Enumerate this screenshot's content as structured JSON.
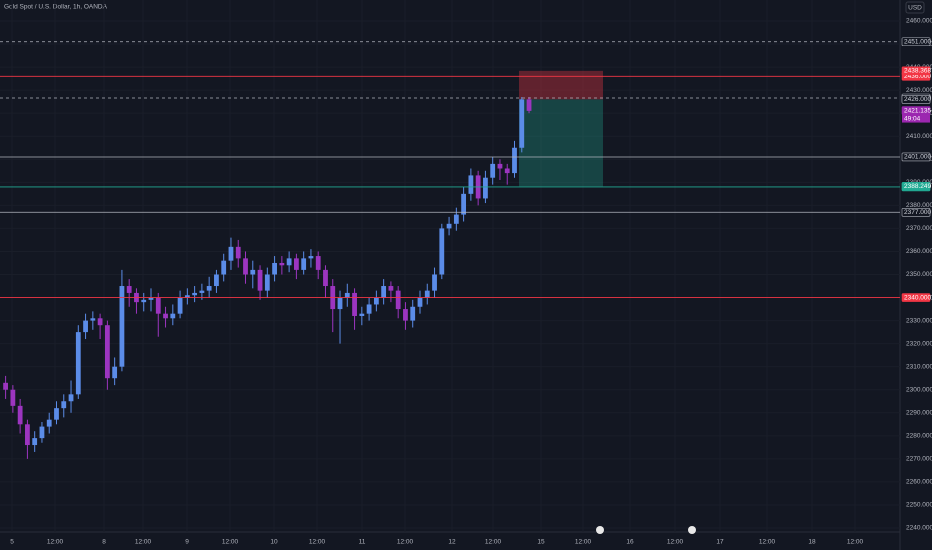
{
  "chart_data": {
    "type": "candlestick",
    "title": "Gold Spot / U.S. Dollar, 1h, OANDA",
    "currency": "USD",
    "up_color": "#5b8ce8",
    "down_color": "#9c35c0",
    "ylim": [
      2240,
      2460
    ],
    "yticks": [
      {
        "value": 2240,
        "label": "2240.000"
      },
      {
        "value": 2250,
        "label": "2250.000"
      },
      {
        "value": 2260,
        "label": "2260.000"
      },
      {
        "value": 2270,
        "label": "2270.000"
      },
      {
        "value": 2280,
        "label": "2280.000"
      },
      {
        "value": 2290,
        "label": "2290.000"
      },
      {
        "value": 2300,
        "label": "2300.000"
      },
      {
        "value": 2310,
        "label": "2310.000"
      },
      {
        "value": 2320,
        "label": "2320.000"
      },
      {
        "value": 2330,
        "label": "2330.000"
      },
      {
        "value": 2340,
        "label": "2340.000"
      },
      {
        "value": 2350,
        "label": "2350.000"
      },
      {
        "value": 2360,
        "label": "2360.000"
      },
      {
        "value": 2370,
        "label": "2370.000"
      },
      {
        "value": 2380,
        "label": "2380.000"
      },
      {
        "value": 2390,
        "label": "2390.000"
      },
      {
        "value": 2400,
        "label": "2400.000"
      },
      {
        "value": 2410,
        "label": "2410.000"
      },
      {
        "value": 2420,
        "label": "2420.000"
      },
      {
        "value": 2430,
        "label": "2430.000"
      },
      {
        "value": 2440,
        "label": "2440.000"
      },
      {
        "value": 2450,
        "label": "2450.000"
      },
      {
        "value": 2460,
        "label": "2460.000"
      }
    ],
    "xticks": [
      "5",
      "12:00",
      "8",
      "12:00",
      "9",
      "12:00",
      "10",
      "12:00",
      "11",
      "12:00",
      "12",
      "12:00",
      "15",
      "12:00",
      "16",
      "12:00",
      "17",
      "12:00",
      "18",
      "12:00"
    ],
    "ohlc": [
      [
        2303,
        2306,
        2296,
        2300
      ],
      [
        2300,
        2302,
        2290,
        2293
      ],
      [
        2293,
        2296,
        2281,
        2285
      ],
      [
        2285,
        2287,
        2270,
        2276
      ],
      [
        2276,
        2282,
        2273,
        2279
      ],
      [
        2279,
        2286,
        2277,
        2284
      ],
      [
        2284,
        2290,
        2281,
        2287
      ],
      [
        2287,
        2295,
        2285,
        2292
      ],
      [
        2292,
        2298,
        2288,
        2295
      ],
      [
        2295,
        2304,
        2290,
        2298
      ],
      [
        2298,
        2328,
        2296,
        2325
      ],
      [
        2325,
        2333,
        2322,
        2330
      ],
      [
        2330,
        2334,
        2326,
        2331
      ],
      [
        2331,
        2333,
        2322,
        2328
      ],
      [
        2328,
        2330,
        2300,
        2305
      ],
      [
        2305,
        2314,
        2302,
        2310
      ],
      [
        2310,
        2352,
        2308,
        2345
      ],
      [
        2345,
        2348,
        2336,
        2342
      ],
      [
        2342,
        2344,
        2333,
        2338
      ],
      [
        2338,
        2342,
        2334,
        2339
      ],
      [
        2339,
        2344,
        2334,
        2340
      ],
      [
        2340,
        2342,
        2323,
        2333
      ],
      [
        2333,
        2336,
        2327,
        2331
      ],
      [
        2331,
        2337,
        2328,
        2333
      ],
      [
        2333,
        2343,
        2331,
        2340
      ],
      [
        2340,
        2344,
        2337,
        2341
      ],
      [
        2341,
        2345,
        2338,
        2342
      ],
      [
        2342,
        2346,
        2339,
        2343
      ],
      [
        2343,
        2349,
        2340,
        2345
      ],
      [
        2345,
        2352,
        2342,
        2350
      ],
      [
        2350,
        2359,
        2347,
        2356
      ],
      [
        2356,
        2366,
        2352,
        2362
      ],
      [
        2362,
        2365,
        2353,
        2357
      ],
      [
        2357,
        2360,
        2346,
        2350
      ],
      [
        2350,
        2356,
        2344,
        2352
      ],
      [
        2352,
        2354,
        2339,
        2343
      ],
      [
        2343,
        2353,
        2340,
        2350
      ],
      [
        2350,
        2358,
        2347,
        2355
      ],
      [
        2355,
        2358,
        2350,
        2354
      ],
      [
        2354,
        2360,
        2351,
        2357
      ],
      [
        2357,
        2359,
        2348,
        2352
      ],
      [
        2352,
        2360,
        2350,
        2357
      ],
      [
        2357,
        2361,
        2353,
        2358
      ],
      [
        2358,
        2360,
        2348,
        2352
      ],
      [
        2352,
        2354,
        2340,
        2345
      ],
      [
        2345,
        2348,
        2325,
        2335
      ],
      [
        2335,
        2343,
        2320,
        2340
      ],
      [
        2340,
        2346,
        2336,
        2342
      ],
      [
        2342,
        2344,
        2326,
        2332
      ],
      [
        2332,
        2336,
        2328,
        2333
      ],
      [
        2333,
        2340,
        2330,
        2337
      ],
      [
        2337,
        2343,
        2334,
        2340
      ],
      [
        2340,
        2348,
        2337,
        2345
      ],
      [
        2345,
        2347,
        2338,
        2343
      ],
      [
        2343,
        2345,
        2331,
        2335
      ],
      [
        2335,
        2338,
        2326,
        2330
      ],
      [
        2330,
        2339,
        2327,
        2336
      ],
      [
        2336,
        2343,
        2333,
        2340
      ],
      [
        2340,
        2346,
        2337,
        2343
      ],
      [
        2343,
        2353,
        2340,
        2350
      ],
      [
        2350,
        2372,
        2348,
        2370
      ],
      [
        2370,
        2375,
        2367,
        2372
      ],
      [
        2372,
        2379,
        2369,
        2376
      ],
      [
        2376,
        2388,
        2373,
        2385
      ],
      [
        2385,
        2396,
        2382,
        2393
      ],
      [
        2393,
        2395,
        2380,
        2383
      ],
      [
        2383,
        2395,
        2381,
        2392
      ],
      [
        2392,
        2401,
        2389,
        2398
      ],
      [
        2398,
        2400,
        2391,
        2396
      ],
      [
        2396,
        2398,
        2389,
        2394
      ],
      [
        2394,
        2408,
        2392,
        2405
      ],
      [
        2405,
        2427,
        2403,
        2426
      ],
      [
        2426,
        2427,
        2420,
        2421
      ]
    ],
    "levels": [
      {
        "value": 2451,
        "label": "2451.000",
        "color": "#b2b5be",
        "dashed": true
      },
      {
        "value": 2436,
        "label": "2436.000",
        "color": "#f23645",
        "dashed": false
      },
      {
        "value": 2426.59,
        "label": "2426.590",
        "color": "#b2b5be",
        "dashed": true
      },
      {
        "value": 2401,
        "label": "2401.000",
        "color": "#b2b5be",
        "dashed": false
      },
      {
        "value": 2388,
        "label": "2388.000",
        "color": "#22ab94",
        "dashed": false
      },
      {
        "value": 2377,
        "label": "2377.000",
        "color": "#b2b5be",
        "dashed": false
      },
      {
        "value": 2340,
        "label": "2340.000",
        "color": "#f23645",
        "dashed": false
      }
    ],
    "tags": [
      {
        "value": 2438.368,
        "label": "2438.368",
        "color": "#f23645"
      },
      {
        "value": 2426,
        "label": "2426.000",
        "color": "#b2b5be"
      },
      {
        "value": 2421.135,
        "label": "2421.135",
        "color": "#9c27b0",
        "countdown": "49:04"
      },
      {
        "value": 2388.249,
        "label": "2388.249",
        "color": "#22ab94"
      }
    ],
    "position": {
      "entry": 2426,
      "stop": 2438.368,
      "target": 2388.249
    }
  }
}
